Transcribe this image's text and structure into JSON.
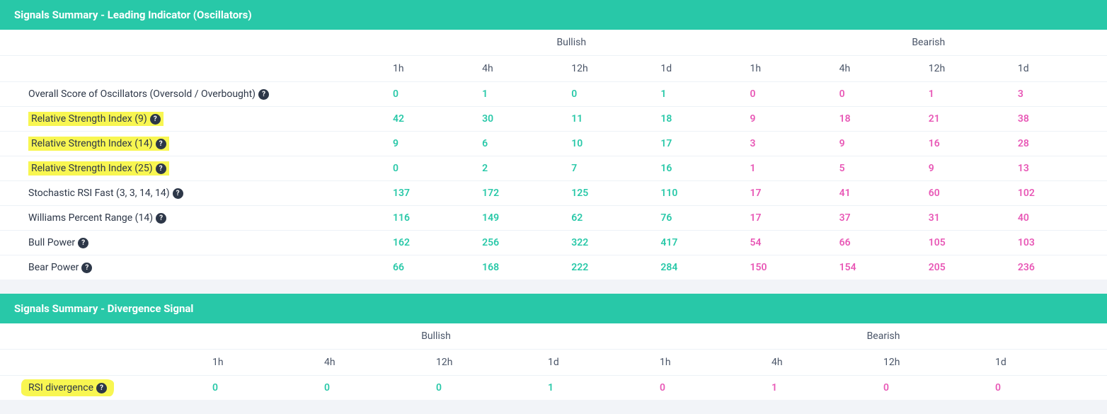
{
  "colors": {
    "header_bg": "#28c8a8",
    "header_text": "#ffffff",
    "bullish": "#28c8a8",
    "bearish": "#e858b6",
    "body_bg": "#f2f4f8",
    "panel_bg": "#ffffff",
    "text": "#4a5568",
    "border": "#edf2f7",
    "highlight": "#f8f651",
    "help_bg": "#2d3748"
  },
  "panel1": {
    "title": "Signals Summary - Leading Indicator (Oscillators)",
    "group_headers": [
      "Bullish",
      "Bearish"
    ],
    "periods": [
      "1h",
      "4h",
      "12h",
      "1d",
      "1h",
      "4h",
      "12h",
      "1d"
    ],
    "label_col_width": "555px",
    "data_col_count": 8,
    "rows": [
      {
        "label": "Overall Score of Oscillators (Oversold / Overbought)",
        "highlight": false,
        "help": true,
        "bullish": [
          "0",
          "1",
          "0",
          "1"
        ],
        "bearish": [
          "0",
          "0",
          "1",
          "3"
        ]
      },
      {
        "label": "Relative Strength Index (9)",
        "highlight": true,
        "help": true,
        "bullish": [
          "42",
          "30",
          "11",
          "18"
        ],
        "bearish": [
          "9",
          "18",
          "21",
          "38"
        ]
      },
      {
        "label": "Relative Strength Index (14)",
        "highlight": true,
        "help": true,
        "bullish": [
          "9",
          "6",
          "10",
          "17"
        ],
        "bearish": [
          "3",
          "9",
          "16",
          "28"
        ]
      },
      {
        "label": "Relative Strength Index (25)",
        "highlight": true,
        "help": true,
        "bullish": [
          "0",
          "2",
          "7",
          "16"
        ],
        "bearish": [
          "1",
          "5",
          "9",
          "13"
        ]
      },
      {
        "label": "Stochastic RSI Fast (3, 3, 14, 14)",
        "highlight": false,
        "help": true,
        "bullish": [
          "137",
          "172",
          "125",
          "110"
        ],
        "bearish": [
          "17",
          "41",
          "60",
          "102"
        ]
      },
      {
        "label": "Williams Percent Range (14)",
        "highlight": false,
        "help": true,
        "bullish": [
          "116",
          "149",
          "62",
          "76"
        ],
        "bearish": [
          "17",
          "37",
          "31",
          "40"
        ]
      },
      {
        "label": "Bull Power",
        "highlight": false,
        "help": true,
        "bullish": [
          "162",
          "256",
          "322",
          "417"
        ],
        "bearish": [
          "54",
          "66",
          "105",
          "103"
        ]
      },
      {
        "label": "Bear Power",
        "highlight": false,
        "help": true,
        "bullish": [
          "66",
          "168",
          "222",
          "284"
        ],
        "bearish": [
          "150",
          "154",
          "205",
          "236"
        ]
      }
    ]
  },
  "panel2": {
    "title": "Signals Summary - Divergence Signal",
    "group_headers": [
      "Bullish",
      "Bearish"
    ],
    "periods": [
      "1h",
      "4h",
      "12h",
      "1d",
      "1h",
      "4h",
      "12h",
      "1d"
    ],
    "label_col_width": "300px",
    "data_col_count": 8,
    "rows": [
      {
        "label": "RSI divergence",
        "highlight": true,
        "highlight_rough": true,
        "help": true,
        "bullish": [
          "0",
          "0",
          "0",
          "1"
        ],
        "bearish": [
          "0",
          "1",
          "0",
          "0"
        ]
      }
    ]
  }
}
